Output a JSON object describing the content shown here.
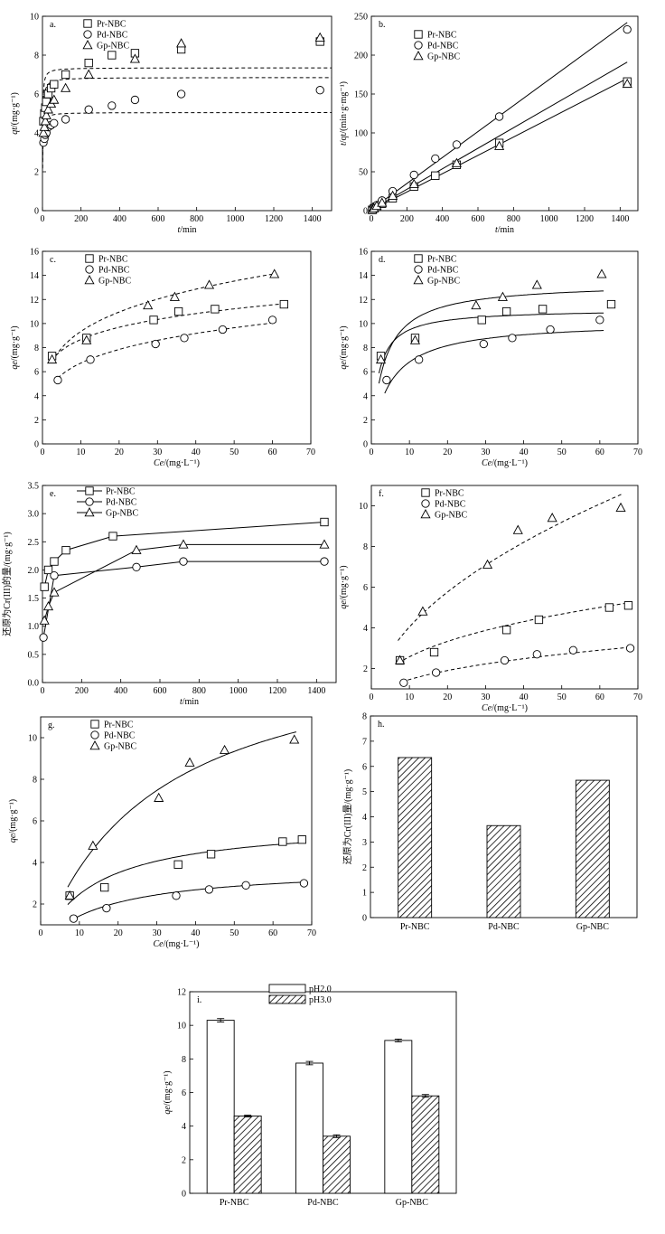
{
  "chart_data": [
    {
      "panel": "a",
      "type": "scatter",
      "panel_label": "a.",
      "xlabel": "t/min",
      "ylabel": "qt/(mg·g⁻¹)",
      "xlim": [
        0,
        1500
      ],
      "ylim": [
        0,
        10
      ],
      "xticks": [
        0,
        200,
        400,
        600,
        800,
        1000,
        1200,
        1400
      ],
      "yticks": [
        0,
        2,
        4,
        6,
        8,
        10
      ],
      "legend": [
        "Pr-NBC",
        "Pd-NBC",
        "Gp-NBC"
      ],
      "series": [
        {
          "name": "Pr-NBC",
          "marker": "square",
          "x": [
            5,
            10,
            15,
            20,
            30,
            45,
            60,
            120,
            240,
            360,
            480,
            720,
            1440
          ],
          "y": [
            4.6,
            5.0,
            5.3,
            5.6,
            6.0,
            6.3,
            6.5,
            7.0,
            7.6,
            8.0,
            8.1,
            8.3,
            8.7
          ]
        },
        {
          "name": "Pd-NBC",
          "marker": "circle",
          "x": [
            5,
            10,
            15,
            20,
            30,
            45,
            60,
            120,
            240,
            360,
            480,
            720,
            1440
          ],
          "y": [
            3.5,
            3.7,
            3.9,
            4.0,
            4.3,
            4.4,
            4.5,
            4.7,
            5.2,
            5.4,
            5.7,
            6.0,
            6.2
          ]
        },
        {
          "name": "Gp-NBC",
          "marker": "triangle",
          "x": [
            5,
            10,
            15,
            20,
            30,
            45,
            60,
            120,
            240,
            480,
            720,
            1440
          ],
          "y": [
            4.0,
            4.3,
            4.6,
            4.9,
            5.2,
            5.5,
            5.7,
            6.3,
            7.0,
            7.8,
            8.6,
            8.9
          ]
        }
      ],
      "fits": [
        {
          "name": "Pr-NBC",
          "style": "dashed",
          "qe": 7.35,
          "k": 0.12
        },
        {
          "name": "Pd-NBC",
          "style": "dashed",
          "qe": 5.05,
          "k": 0.15
        },
        {
          "name": "Gp-NBC",
          "style": "dashed",
          "qe": 6.85,
          "k": 0.09
        }
      ]
    },
    {
      "panel": "b",
      "type": "scatter",
      "panel_label": "b.",
      "xlabel": "t/min",
      "ylabel": "t/qt/(min·g·mg⁻¹)",
      "xlim": [
        0,
        1500
      ],
      "ylim": [
        0,
        250
      ],
      "xticks": [
        0,
        200,
        400,
        600,
        800,
        1000,
        1200,
        1400
      ],
      "yticks": [
        0,
        50,
        100,
        150,
        200,
        250
      ],
      "legend": [
        "Pr-NBC",
        "Pd-NBC",
        "Gp-NBC"
      ],
      "series": [
        {
          "name": "Pr-NBC",
          "marker": "square",
          "x": [
            5,
            15,
            30,
            60,
            120,
            240,
            360,
            480,
            720,
            1440
          ],
          "y": [
            1,
            3,
            5,
            9,
            16,
            31,
            45,
            59,
            87,
            166
          ]
        },
        {
          "name": "Pd-NBC",
          "marker": "circle",
          "x": [
            5,
            15,
            30,
            60,
            120,
            240,
            360,
            480,
            720,
            1440
          ],
          "y": [
            2,
            4,
            7,
            13,
            25,
            46,
            67,
            85,
            121,
            233
          ]
        },
        {
          "name": "Gp-NBC",
          "marker": "triangle",
          "x": [
            5,
            15,
            30,
            60,
            120,
            240,
            480,
            720,
            1440
          ],
          "y": [
            1,
            3,
            6,
            10,
            19,
            34,
            61,
            83,
            163
          ]
        }
      ],
      "fits": [
        {
          "name": "Pr-NBC",
          "style": "solid",
          "x": [
            0,
            1440
          ],
          "y": [
            0.5,
            170
          ]
        },
        {
          "name": "Pd-NBC",
          "style": "solid",
          "x": [
            0,
            1440
          ],
          "y": [
            1.5,
            242
          ]
        },
        {
          "name": "Gp-NBC",
          "style": "solid",
          "x": [
            0,
            1440
          ],
          "y": [
            1.0,
            191
          ]
        }
      ]
    },
    {
      "panel": "c",
      "type": "scatter",
      "panel_label": "c.",
      "xlabel": "Ce/(mg·L⁻¹)",
      "ylabel": "qe/(mg·g⁻¹)",
      "xlim": [
        0,
        70
      ],
      "ylim": [
        0,
        16
      ],
      "xticks": [
        0,
        10,
        20,
        30,
        40,
        50,
        60,
        70
      ],
      "yticks": [
        0,
        2,
        4,
        6,
        8,
        10,
        12,
        14,
        16
      ],
      "legend": [
        "Pr-NBC",
        "Pd-NBC",
        "Gp-NBC"
      ],
      "series": [
        {
          "name": "Pr-NBC",
          "marker": "square",
          "x": [
            2.5,
            11.5,
            29,
            35.5,
            45,
            63
          ],
          "y": [
            7.3,
            8.8,
            10.3,
            11.0,
            11.2,
            11.6
          ]
        },
        {
          "name": "Pd-NBC",
          "marker": "circle",
          "x": [
            4,
            12.5,
            29.5,
            37,
            47,
            60
          ],
          "y": [
            5.3,
            7.0,
            8.3,
            8.8,
            9.5,
            10.3
          ]
        },
        {
          "name": "Gp-NBC",
          "marker": "triangle",
          "x": [
            2.5,
            11.5,
            27.5,
            34.5,
            43.5,
            60.5
          ],
          "y": [
            7.0,
            8.6,
            11.5,
            12.2,
            13.2,
            14.1
          ]
        }
      ],
      "fits": [
        {
          "name": "Pr-NBC",
          "style": "dashed",
          "model": "freundlich",
          "K": 6.0,
          "n": 0.16,
          "x0": 2.5,
          "x1": 63
        },
        {
          "name": "Pd-NBC",
          "style": "dashed",
          "model": "freundlich",
          "K": 4.0,
          "n": 0.225,
          "x0": 4,
          "x1": 61
        },
        {
          "name": "Gp-NBC",
          "style": "dashed",
          "model": "freundlich",
          "K": 5.5,
          "n": 0.23,
          "x0": 2.5,
          "x1": 61
        }
      ]
    },
    {
      "panel": "d",
      "type": "scatter",
      "panel_label": "d.",
      "xlabel": "Ce/(mg·L⁻¹)",
      "ylabel": "qe/(mg·g⁻¹)",
      "xlim": [
        0,
        70
      ],
      "ylim": [
        0,
        16
      ],
      "xticks": [
        0,
        10,
        20,
        30,
        40,
        50,
        60,
        70
      ],
      "yticks": [
        0,
        2,
        4,
        6,
        8,
        10,
        12,
        14,
        16
      ],
      "legend": [
        "Pr-NBC",
        "Pd-NBC",
        "Gp-NBC"
      ],
      "series": [
        {
          "name": "Pr-NBC",
          "marker": "square",
          "x": [
            2.5,
            11.5,
            29,
            35.5,
            45,
            63
          ],
          "y": [
            7.3,
            8.8,
            10.3,
            11.0,
            11.2,
            11.6
          ]
        },
        {
          "name": "Pd-NBC",
          "marker": "circle",
          "x": [
            4,
            12.5,
            29.5,
            37,
            47,
            60
          ],
          "y": [
            5.3,
            7.0,
            8.3,
            8.8,
            9.5,
            10.3
          ]
        },
        {
          "name": "Gp-NBC",
          "marker": "triangle",
          "x": [
            2.5,
            11.5,
            27.5,
            34.5,
            43.5,
            60.5
          ],
          "y": [
            7.0,
            8.6,
            11.5,
            12.2,
            13.2,
            14.1
          ]
        }
      ],
      "fits": [
        {
          "name": "Pr-NBC",
          "style": "solid",
          "model": "langmuir",
          "qm": 11.2,
          "KL": 0.55,
          "x0": 2,
          "x1": 61
        },
        {
          "name": "Pd-NBC",
          "style": "solid",
          "model": "langmuir",
          "qm": 10.2,
          "KL": 0.2,
          "x0": 3.5,
          "x1": 61
        },
        {
          "name": "Gp-NBC",
          "style": "solid",
          "model": "langmuir",
          "qm": 13.4,
          "KL": 0.3,
          "x0": 2,
          "x1": 61
        }
      ]
    },
    {
      "panel": "e",
      "type": "line",
      "panel_label": "e.",
      "xlabel": "t/min",
      "ylabel": "还原为Cr(III)的量/(mg·g⁻¹)",
      "xlim": [
        0,
        1500
      ],
      "ylim": [
        0,
        3.5
      ],
      "xticks": [
        0,
        200,
        400,
        600,
        800,
        1000,
        1200,
        1400
      ],
      "yticks": [
        0,
        0.5,
        1.0,
        1.5,
        2.0,
        2.5,
        3.0,
        3.5
      ],
      "legend": [
        "Pr-NBC",
        "Pd-NBC",
        "Gp-NBC"
      ],
      "series": [
        {
          "name": "Pr-NBC",
          "marker": "square",
          "x": [
            10,
            30,
            60,
            120,
            360,
            1440
          ],
          "y": [
            1.7,
            2.0,
            2.15,
            2.35,
            2.6,
            2.85
          ]
        },
        {
          "name": "Pd-NBC",
          "marker": "circle",
          "x": [
            5,
            60,
            480,
            720,
            1440
          ],
          "y": [
            0.8,
            1.9,
            2.05,
            2.15,
            2.15
          ]
        },
        {
          "name": "Gp-NBC",
          "marker": "triangle",
          "x": [
            10,
            30,
            60,
            480,
            720,
            1440
          ],
          "y": [
            1.1,
            1.35,
            1.6,
            2.35,
            2.45,
            2.45
          ]
        }
      ]
    },
    {
      "panel": "f",
      "type": "scatter",
      "panel_label": "f.",
      "xlabel": "Ce/(mg·L⁻¹)",
      "ylabel": "qe/(mg·g⁻¹)",
      "xlim": [
        0,
        70
      ],
      "ylim": [
        1,
        11
      ],
      "xticks": [
        0,
        10,
        20,
        30,
        40,
        50,
        60,
        70
      ],
      "yticks": [
        2,
        4,
        6,
        8,
        10
      ],
      "legend": [
        "Pr-NBC",
        "Pd-NBC",
        "Gp-NBC"
      ],
      "series": [
        {
          "name": "Pr-NBC",
          "marker": "square",
          "x": [
            7.5,
            16.5,
            35.5,
            44,
            62.5,
            67.5
          ],
          "y": [
            2.4,
            2.8,
            3.9,
            4.4,
            5.0,
            5.1
          ]
        },
        {
          "name": "Pd-NBC",
          "marker": "circle",
          "x": [
            8.5,
            17,
            35,
            43.5,
            53,
            68
          ],
          "y": [
            1.3,
            1.8,
            2.4,
            2.7,
            2.9,
            3.0
          ]
        },
        {
          "name": "Gp-NBC",
          "marker": "triangle",
          "x": [
            7.5,
            13.5,
            30.5,
            38.5,
            47.5,
            65.5
          ],
          "y": [
            2.4,
            4.8,
            7.1,
            8.8,
            9.4,
            9.9
          ]
        }
      ],
      "fits": [
        {
          "name": "Pr-NBC",
          "style": "dashed",
          "model": "freundlich",
          "K": 1.1,
          "n": 0.37,
          "x0": 7,
          "x1": 67
        },
        {
          "name": "Pd-NBC",
          "style": "dashed",
          "model": "freundlich",
          "K": 0.6,
          "n": 0.385,
          "x0": 8,
          "x1": 68
        },
        {
          "name": "Gp-NBC",
          "style": "dashed",
          "model": "freundlich",
          "K": 1.25,
          "n": 0.51,
          "x0": 7,
          "x1": 66
        }
      ]
    },
    {
      "panel": "g",
      "type": "scatter",
      "panel_label": "g.",
      "xlabel": "Ce/(mg·L⁻¹)",
      "ylabel": "qe/(mg·g⁻¹)",
      "xlim": [
        0,
        70
      ],
      "ylim": [
        1,
        11
      ],
      "xticks": [
        0,
        10,
        20,
        30,
        40,
        50,
        60,
        70
      ],
      "yticks": [
        2,
        4,
        6,
        8,
        10
      ],
      "legend": [
        "Pr-NBC",
        "Pd-NBC",
        "Gp-NBC"
      ],
      "series": [
        {
          "name": "Pr-NBC",
          "marker": "square",
          "x": [
            7.5,
            16.5,
            35.5,
            44,
            62.5,
            67.5
          ],
          "y": [
            2.4,
            2.8,
            3.9,
            4.4,
            5.0,
            5.1
          ]
        },
        {
          "name": "Pd-NBC",
          "marker": "circle",
          "x": [
            8.5,
            17,
            35,
            43.5,
            53,
            68
          ],
          "y": [
            1.3,
            1.8,
            2.4,
            2.7,
            2.9,
            3.0
          ]
        },
        {
          "name": "Gp-NBC",
          "marker": "triangle",
          "x": [
            7.5,
            13.5,
            30.5,
            38.5,
            47.5,
            65.5
          ],
          "y": [
            2.4,
            4.8,
            7.1,
            8.8,
            9.4,
            9.9
          ]
        }
      ],
      "fits": [
        {
          "name": "Pr-NBC",
          "style": "solid",
          "model": "langmuir",
          "qm": 6.0,
          "KL": 0.07,
          "x0": 7,
          "x1": 67
        },
        {
          "name": "Pd-NBC",
          "style": "solid",
          "model": "langmuir",
          "qm": 3.8,
          "KL": 0.06,
          "x0": 8,
          "x1": 68
        },
        {
          "name": "Gp-NBC",
          "style": "solid",
          "model": "langmuir",
          "qm": 15.0,
          "KL": 0.033,
          "x0": 7,
          "x1": 66
        }
      ]
    },
    {
      "panel": "h",
      "type": "bar",
      "panel_label": "h.",
      "ylabel": "还原为Cr(III)量/(mg·g⁻¹)",
      "categories": [
        "Pr-NBC",
        "Pd-NBC",
        "Gp-NBC"
      ],
      "values": [
        6.35,
        3.65,
        5.45
      ],
      "ylim": [
        0,
        8
      ],
      "yticks": [
        0,
        1,
        2,
        3,
        4,
        5,
        6,
        7,
        8
      ]
    },
    {
      "panel": "i",
      "type": "bar",
      "panel_label": "i.",
      "ylabel": "qe/(mg·g⁻¹)",
      "categories": [
        "Pr-NBC",
        "Pd-NBC",
        "Gp-NBC"
      ],
      "series": [
        {
          "name": "pH2.0",
          "values": [
            10.3,
            7.75,
            9.1
          ],
          "errors": [
            0.1,
            0.1,
            0.08
          ]
        },
        {
          "name": "pH3.0",
          "values": [
            4.6,
            3.4,
            5.8
          ],
          "errors": [
            0.05,
            0.08,
            0.08
          ]
        }
      ],
      "ylim": [
        0,
        12
      ],
      "yticks": [
        0,
        2,
        4,
        6,
        8,
        10,
        12
      ],
      "legend": [
        "pH2.0",
        "pH3.0"
      ]
    }
  ]
}
